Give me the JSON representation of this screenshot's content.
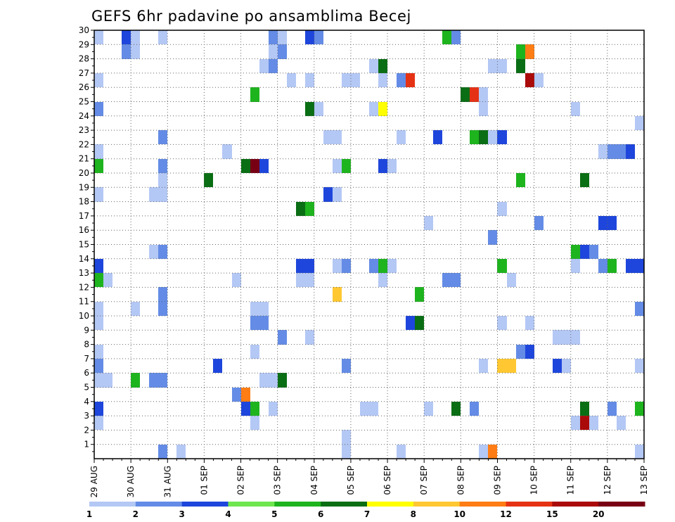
{
  "chart_data": {
    "type": "heatmap",
    "title": "GEFS 6hr padavine po ansamblima Becej",
    "xlabel": "",
    "ylabel": "",
    "x_tick_labels": [
      "29 AUG",
      "30 AUG",
      "31 AUG",
      "01 SEP",
      "02 SEP",
      "03 SEP",
      "04 SEP",
      "05 SEP",
      "06 SEP",
      "07 SEP",
      "08 SEP",
      "09 SEP",
      "10 SEP",
      "11 SEP",
      "12 SEP",
      "13 SEP"
    ],
    "y_tick_labels": [
      "1",
      "2",
      "3",
      "4",
      "5",
      "6",
      "7",
      "8",
      "9",
      "10",
      "11",
      "12",
      "13",
      "14",
      "15",
      "16",
      "17",
      "18",
      "19",
      "20",
      "21",
      "22",
      "23",
      "24",
      "25",
      "26",
      "27",
      "28",
      "29",
      "30"
    ],
    "x_range_steps": [
      0,
      60
    ],
    "y_range": [
      0,
      30
    ],
    "steps_per_day": 4,
    "grid": true,
    "legend": {
      "position": "bottom",
      "boundaries": [
        "1",
        "2",
        "3",
        "4",
        "5",
        "6",
        "7",
        "8",
        "10",
        "12",
        "15",
        "20"
      ],
      "colors": [
        "#b4c8f5",
        "#648ce6",
        "#1e46dc",
        "#6ee650",
        "#1eb41e",
        "#0a6e14",
        "#ffff00",
        "#ffc832",
        "#ff7d14",
        "#e63214",
        "#aa0a0a",
        "#780014"
      ]
    },
    "cells": [
      [
        0,
        30,
        1
      ],
      [
        3,
        30,
        3
      ],
      [
        4,
        30,
        1
      ],
      [
        7,
        30,
        1
      ],
      [
        19,
        30,
        2
      ],
      [
        20,
        30,
        1
      ],
      [
        23,
        30,
        3
      ],
      [
        24,
        30,
        2
      ],
      [
        38,
        30,
        5
      ],
      [
        39,
        30,
        2
      ],
      [
        3,
        29,
        2
      ],
      [
        4,
        29,
        1
      ],
      [
        19,
        29,
        1
      ],
      [
        20,
        29,
        2
      ],
      [
        46,
        29,
        5
      ],
      [
        47,
        29,
        9
      ],
      [
        18,
        28,
        1
      ],
      [
        19,
        28,
        2
      ],
      [
        30,
        28,
        1
      ],
      [
        31,
        28,
        6
      ],
      [
        43,
        28,
        1
      ],
      [
        44,
        28,
        1
      ],
      [
        46,
        28,
        6
      ],
      [
        0,
        27,
        1
      ],
      [
        21,
        27,
        1
      ],
      [
        23,
        27,
        1
      ],
      [
        27,
        27,
        1
      ],
      [
        28,
        27,
        1
      ],
      [
        31,
        27,
        1
      ],
      [
        33,
        27,
        2
      ],
      [
        34,
        27,
        10
      ],
      [
        47,
        27,
        11
      ],
      [
        48,
        27,
        1
      ],
      [
        17,
        26,
        5
      ],
      [
        40,
        26,
        6
      ],
      [
        41,
        26,
        10
      ],
      [
        42,
        26,
        1
      ],
      [
        0,
        25,
        2
      ],
      [
        23,
        25,
        6
      ],
      [
        24,
        25,
        1
      ],
      [
        30,
        25,
        1
      ],
      [
        31,
        25,
        7
      ],
      [
        42,
        25,
        1
      ],
      [
        52,
        25,
        1
      ],
      [
        59,
        24,
        1
      ],
      [
        7,
        23,
        2
      ],
      [
        25,
        23,
        1
      ],
      [
        26,
        23,
        1
      ],
      [
        33,
        23,
        1
      ],
      [
        37,
        23,
        3
      ],
      [
        41,
        23,
        5
      ],
      [
        42,
        23,
        6
      ],
      [
        43,
        23,
        1
      ],
      [
        44,
        23,
        3
      ],
      [
        0,
        22,
        1
      ],
      [
        14,
        22,
        1
      ],
      [
        55,
        22,
        1
      ],
      [
        56,
        22,
        2
      ],
      [
        57,
        22,
        2
      ],
      [
        58,
        22,
        3
      ],
      [
        0,
        21,
        5
      ],
      [
        7,
        21,
        2
      ],
      [
        16,
        21,
        6
      ],
      [
        17,
        21,
        12
      ],
      [
        18,
        21,
        3
      ],
      [
        26,
        21,
        1
      ],
      [
        27,
        21,
        5
      ],
      [
        31,
        21,
        3
      ],
      [
        32,
        21,
        1
      ],
      [
        7,
        20,
        1
      ],
      [
        12,
        20,
        6
      ],
      [
        46,
        20,
        5
      ],
      [
        53,
        20,
        6
      ],
      [
        0,
        19,
        1
      ],
      [
        6,
        19,
        1
      ],
      [
        7,
        19,
        1
      ],
      [
        25,
        19,
        3
      ],
      [
        26,
        19,
        1
      ],
      [
        22,
        18,
        6
      ],
      [
        23,
        18,
        5
      ],
      [
        44,
        18,
        1
      ],
      [
        36,
        17,
        1
      ],
      [
        48,
        17,
        2
      ],
      [
        55,
        17,
        3
      ],
      [
        56,
        17,
        3
      ],
      [
        43,
        16,
        2
      ],
      [
        6,
        15,
        1
      ],
      [
        7,
        15,
        2
      ],
      [
        52,
        15,
        5
      ],
      [
        53,
        15,
        3
      ],
      [
        54,
        15,
        2
      ],
      [
        0,
        14,
        3
      ],
      [
        22,
        14,
        3
      ],
      [
        23,
        14,
        3
      ],
      [
        26,
        14,
        1
      ],
      [
        27,
        14,
        2
      ],
      [
        30,
        14,
        2
      ],
      [
        31,
        14,
        5
      ],
      [
        32,
        14,
        1
      ],
      [
        44,
        14,
        5
      ],
      [
        52,
        14,
        1
      ],
      [
        55,
        14,
        2
      ],
      [
        56,
        14,
        5
      ],
      [
        58,
        14,
        3
      ],
      [
        59,
        14,
        3
      ],
      [
        0,
        13,
        5
      ],
      [
        1,
        13,
        1
      ],
      [
        15,
        13,
        1
      ],
      [
        22,
        13,
        1
      ],
      [
        23,
        13,
        1
      ],
      [
        31,
        13,
        1
      ],
      [
        38,
        13,
        2
      ],
      [
        39,
        13,
        2
      ],
      [
        45,
        13,
        1
      ],
      [
        7,
        12,
        2
      ],
      [
        26,
        12,
        8
      ],
      [
        35,
        12,
        5
      ],
      [
        0,
        11,
        1
      ],
      [
        4,
        11,
        1
      ],
      [
        7,
        11,
        2
      ],
      [
        17,
        11,
        1
      ],
      [
        18,
        11,
        1
      ],
      [
        59,
        11,
        2
      ],
      [
        0,
        10,
        1
      ],
      [
        17,
        10,
        2
      ],
      [
        18,
        10,
        2
      ],
      [
        34,
        10,
        3
      ],
      [
        35,
        10,
        6
      ],
      [
        44,
        10,
        1
      ],
      [
        47,
        10,
        1
      ],
      [
        20,
        9,
        2
      ],
      [
        23,
        9,
        1
      ],
      [
        50,
        9,
        1
      ],
      [
        51,
        9,
        1
      ],
      [
        52,
        9,
        1
      ],
      [
        0,
        8,
        1
      ],
      [
        17,
        8,
        1
      ],
      [
        46,
        8,
        2
      ],
      [
        47,
        8,
        3
      ],
      [
        0,
        7,
        2
      ],
      [
        13,
        7,
        3
      ],
      [
        27,
        7,
        2
      ],
      [
        42,
        7,
        1
      ],
      [
        44,
        7,
        8
      ],
      [
        45,
        7,
        8
      ],
      [
        50,
        7,
        3
      ],
      [
        51,
        7,
        1
      ],
      [
        59,
        7,
        1
      ],
      [
        0,
        6,
        1
      ],
      [
        1,
        6,
        1
      ],
      [
        4,
        6,
        5
      ],
      [
        6,
        6,
        2
      ],
      [
        7,
        6,
        2
      ],
      [
        18,
        6,
        1
      ],
      [
        19,
        6,
        1
      ],
      [
        20,
        6,
        6
      ],
      [
        15,
        5,
        2
      ],
      [
        16,
        5,
        9
      ],
      [
        0,
        4,
        3
      ],
      [
        16,
        4,
        3
      ],
      [
        17,
        4,
        5
      ],
      [
        19,
        4,
        1
      ],
      [
        29,
        4,
        1
      ],
      [
        30,
        4,
        1
      ],
      [
        36,
        4,
        1
      ],
      [
        39,
        4,
        6
      ],
      [
        41,
        4,
        2
      ],
      [
        53,
        4,
        6
      ],
      [
        56,
        4,
        2
      ],
      [
        59,
        4,
        5
      ],
      [
        0,
        3,
        1
      ],
      [
        17,
        3,
        1
      ],
      [
        52,
        3,
        1
      ],
      [
        53,
        3,
        11
      ],
      [
        54,
        3,
        1
      ],
      [
        57,
        3,
        1
      ],
      [
        27,
        2,
        1
      ],
      [
        7,
        1,
        2
      ],
      [
        9,
        1,
        1
      ],
      [
        27,
        1,
        1
      ],
      [
        33,
        1,
        1
      ],
      [
        42,
        1,
        1
      ],
      [
        43,
        1,
        9
      ],
      [
        59,
        1,
        1
      ]
    ]
  }
}
